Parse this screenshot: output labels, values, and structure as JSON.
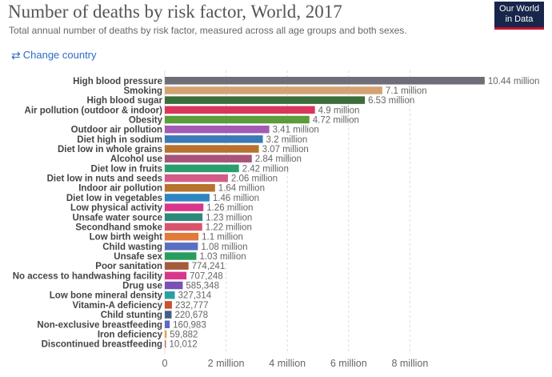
{
  "header": {
    "title": "Number of deaths by risk factor, World, 2017",
    "subtitle": "Total annual number of deaths by risk factor, measured across all age groups and both sexes.",
    "logo_line1": "Our World",
    "logo_line2": "in Data"
  },
  "controls": {
    "change_country_label": "Change country",
    "change_country_icon": "swap-arrows-icon",
    "link_color": "#2c6bc6"
  },
  "chart_data": {
    "type": "bar",
    "orientation": "horizontal",
    "title": "Number of deaths by risk factor, World, 2017",
    "subtitle": "Total annual number of deaths by risk factor, measured across all age groups and both sexes.",
    "xlim": [
      0,
      10000000
    ],
    "x_ticks": [
      0,
      2000000,
      4000000,
      6000000,
      8000000
    ],
    "x_tick_labels": [
      "0",
      "2 million",
      "4 million",
      "6 million",
      "8 million"
    ],
    "grid": "vertical dashed",
    "categories": [
      "High blood pressure",
      "Smoking",
      "High blood sugar",
      "Air pollution (outdoor & indoor)",
      "Obesity",
      "Outdoor air pollution",
      "Diet high in sodium",
      "Diet low in whole grains",
      "Alcohol use",
      "Diet low in fruits",
      "Diet low in nuts and seeds",
      "Indoor air pollution",
      "Diet low in vegetables",
      "Low physical activity",
      "Unsafe water source",
      "Secondhand smoke",
      "Low birth weight",
      "Child wasting",
      "Unsafe sex",
      "Poor sanitation",
      "No access to handwashing facility",
      "Drug use",
      "Low bone mineral density",
      "Vitamin-A deficiency",
      "Child stunting",
      "Non-exclusive breastfeeding",
      "Iron deficiency",
      "Discontinued breastfeeding"
    ],
    "values": [
      10440000,
      7100000,
      6530000,
      4900000,
      4720000,
      3410000,
      3200000,
      3070000,
      2840000,
      2420000,
      2060000,
      1640000,
      1460000,
      1260000,
      1230000,
      1220000,
      1100000,
      1080000,
      1030000,
      774241,
      707248,
      585348,
      327314,
      232777,
      220678,
      160983,
      59882,
      10012
    ],
    "value_labels": [
      "10.44 million",
      "7.1 million",
      "6.53 million",
      "4.9 million",
      "4.72 million",
      "3.41 million",
      "3.2 million",
      "3.07 million",
      "2.84 million",
      "2.42 million",
      "2.06 million",
      "1.64 million",
      "1.46 million",
      "1.26 million",
      "1.23 million",
      "1.22 million",
      "1.1 million",
      "1.08 million",
      "1.03 million",
      "774,241",
      "707,248",
      "585,348",
      "327,314",
      "232,777",
      "220,678",
      "160,983",
      "59,882",
      "10,012"
    ],
    "colors": [
      "#6e6e78",
      "#d4a373",
      "#3b6e3b",
      "#d9365b",
      "#5c9c3c",
      "#a35bb5",
      "#3b7ab5",
      "#b8722e",
      "#a8537a",
      "#2a9d6e",
      "#d45b87",
      "#b8722e",
      "#2e86c1",
      "#d9368b",
      "#2a8a7a",
      "#d9546b",
      "#e07b39",
      "#5b6fc2",
      "#2a9d5e",
      "#a35b3b",
      "#d9368b",
      "#7b4fb5",
      "#2aa1a1",
      "#c8512e",
      "#3e5f8a",
      "#5c6bc0",
      "#e6a23c",
      "#c0707a"
    ]
  }
}
